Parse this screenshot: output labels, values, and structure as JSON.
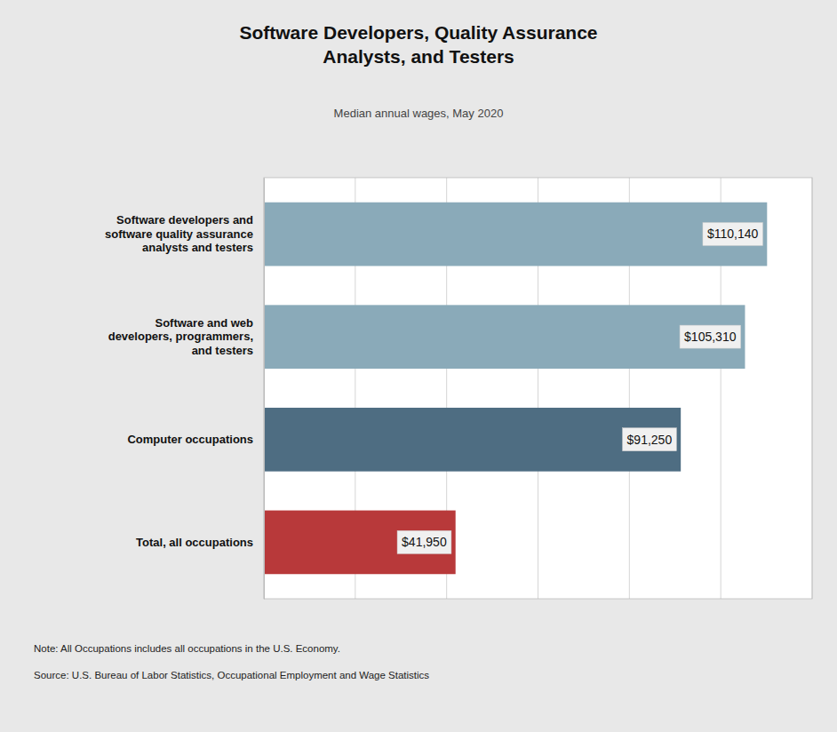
{
  "chart_data": {
    "type": "bar",
    "orientation": "horizontal",
    "title": "Software Developers, Quality Assurance\nAnalysts, and Testers",
    "subtitle": "Median annual wages, May 2020",
    "categories": [
      "Total, all occupations",
      "Computer occupations",
      "Software and web\ndevelopers, programmers,\nand testers",
      "Software developers and\nsoftware quality assurance\nanalysts and testers"
    ],
    "values": [
      41950,
      91250,
      105310,
      110140
    ],
    "value_labels": [
      "$41,950",
      "$91,250",
      "$105,310",
      "$110,140"
    ],
    "colors": [
      "#b8393a",
      "#4e6d82",
      "#8aaab9",
      "#8aaab9"
    ],
    "xlim": [
      0,
      120000
    ],
    "xticks": [
      0,
      20000,
      40000,
      60000,
      80000,
      100000,
      120000
    ],
    "grid": true,
    "tick_labels": "y",
    "data_labels": true,
    "annotations": [
      "Note: All Occupations includes all occupations in the U.S. Economy.",
      "Source: U.S. Bureau of Labor Statistics, Occupational Employment and Wage Statistics"
    ]
  }
}
